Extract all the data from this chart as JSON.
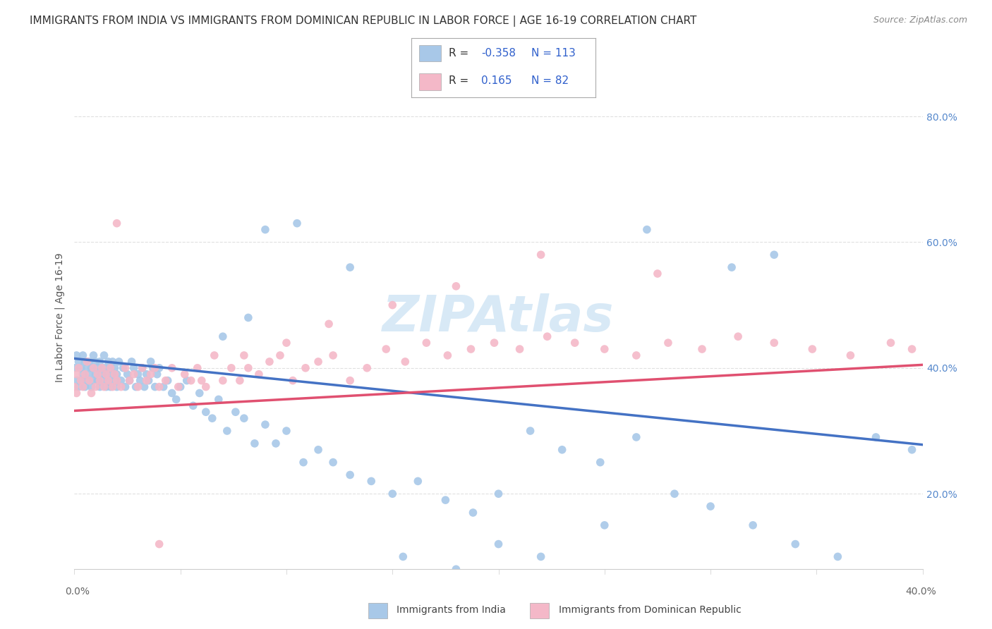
{
  "title": "IMMIGRANTS FROM INDIA VS IMMIGRANTS FROM DOMINICAN REPUBLIC IN LABOR FORCE | AGE 16-19 CORRELATION CHART",
  "source": "Source: ZipAtlas.com",
  "ylabel": "In Labor Force | Age 16-19",
  "xlim": [
    0.0,
    0.4
  ],
  "ylim": [
    0.08,
    0.88
  ],
  "watermark": "ZIPAtlas",
  "legend_R_india": "-0.358",
  "legend_N_india": "113",
  "legend_R_dr": "0.165",
  "legend_N_dr": "82",
  "india_color": "#a8c8e8",
  "dr_color": "#f4b8c8",
  "india_line_color": "#4472c4",
  "dr_line_color": "#e05070",
  "india_trend_x": [
    0.0,
    0.4
  ],
  "india_trend_y": [
    0.415,
    0.278
  ],
  "dr_trend_x": [
    0.0,
    0.4
  ],
  "dr_trend_y": [
    0.332,
    0.405
  ],
  "india_x": [
    0.0,
    0.001,
    0.001,
    0.002,
    0.002,
    0.003,
    0.003,
    0.004,
    0.004,
    0.005,
    0.005,
    0.006,
    0.006,
    0.007,
    0.007,
    0.008,
    0.008,
    0.009,
    0.009,
    0.01,
    0.01,
    0.011,
    0.011,
    0.012,
    0.012,
    0.013,
    0.013,
    0.014,
    0.014,
    0.015,
    0.015,
    0.016,
    0.016,
    0.017,
    0.017,
    0.018,
    0.018,
    0.019,
    0.019,
    0.02,
    0.02,
    0.021,
    0.022,
    0.023,
    0.024,
    0.025,
    0.026,
    0.027,
    0.028,
    0.029,
    0.03,
    0.031,
    0.032,
    0.033,
    0.034,
    0.035,
    0.036,
    0.037,
    0.038,
    0.039,
    0.04,
    0.042,
    0.044,
    0.046,
    0.048,
    0.05,
    0.053,
    0.056,
    0.059,
    0.062,
    0.065,
    0.068,
    0.072,
    0.076,
    0.08,
    0.085,
    0.09,
    0.095,
    0.1,
    0.108,
    0.115,
    0.122,
    0.13,
    0.14,
    0.15,
    0.162,
    0.175,
    0.188,
    0.2,
    0.215,
    0.23,
    0.248,
    0.265,
    0.283,
    0.3,
    0.32,
    0.34,
    0.36,
    0.378,
    0.395,
    0.27,
    0.31,
    0.33,
    0.25,
    0.22,
    0.2,
    0.18,
    0.155,
    0.13,
    0.105,
    0.09,
    0.082,
    0.07
  ],
  "india_y": [
    0.4,
    0.42,
    0.38,
    0.41,
    0.37,
    0.4,
    0.38,
    0.42,
    0.39,
    0.41,
    0.37,
    0.4,
    0.38,
    0.41,
    0.39,
    0.4,
    0.37,
    0.42,
    0.38,
    0.41,
    0.39,
    0.4,
    0.38,
    0.37,
    0.41,
    0.39,
    0.38,
    0.42,
    0.4,
    0.37,
    0.39,
    0.41,
    0.38,
    0.4,
    0.37,
    0.39,
    0.41,
    0.38,
    0.4,
    0.37,
    0.39,
    0.41,
    0.38,
    0.4,
    0.37,
    0.39,
    0.38,
    0.41,
    0.4,
    0.37,
    0.39,
    0.38,
    0.4,
    0.37,
    0.39,
    0.38,
    0.41,
    0.4,
    0.37,
    0.39,
    0.4,
    0.37,
    0.38,
    0.36,
    0.35,
    0.37,
    0.38,
    0.34,
    0.36,
    0.33,
    0.32,
    0.35,
    0.3,
    0.33,
    0.32,
    0.28,
    0.31,
    0.28,
    0.3,
    0.25,
    0.27,
    0.25,
    0.23,
    0.22,
    0.2,
    0.22,
    0.19,
    0.17,
    0.2,
    0.3,
    0.27,
    0.25,
    0.29,
    0.2,
    0.18,
    0.15,
    0.12,
    0.1,
    0.29,
    0.27,
    0.62,
    0.56,
    0.58,
    0.15,
    0.1,
    0.12,
    0.08,
    0.1,
    0.56,
    0.63,
    0.62,
    0.48,
    0.45
  ],
  "dr_x": [
    0.0,
    0.001,
    0.001,
    0.002,
    0.003,
    0.004,
    0.005,
    0.006,
    0.007,
    0.008,
    0.009,
    0.01,
    0.011,
    0.012,
    0.013,
    0.014,
    0.015,
    0.016,
    0.017,
    0.018,
    0.019,
    0.02,
    0.022,
    0.024,
    0.026,
    0.028,
    0.03,
    0.032,
    0.034,
    0.036,
    0.038,
    0.04,
    0.043,
    0.046,
    0.049,
    0.052,
    0.055,
    0.058,
    0.062,
    0.066,
    0.07,
    0.074,
    0.078,
    0.082,
    0.087,
    0.092,
    0.097,
    0.103,
    0.109,
    0.115,
    0.122,
    0.13,
    0.138,
    0.147,
    0.156,
    0.166,
    0.176,
    0.187,
    0.198,
    0.21,
    0.223,
    0.236,
    0.25,
    0.265,
    0.28,
    0.296,
    0.313,
    0.33,
    0.348,
    0.366,
    0.385,
    0.395,
    0.275,
    0.22,
    0.18,
    0.15,
    0.12,
    0.1,
    0.08,
    0.06,
    0.04,
    0.02
  ],
  "dr_y": [
    0.37,
    0.39,
    0.36,
    0.4,
    0.38,
    0.37,
    0.39,
    0.41,
    0.38,
    0.36,
    0.4,
    0.37,
    0.39,
    0.38,
    0.4,
    0.37,
    0.39,
    0.38,
    0.4,
    0.37,
    0.39,
    0.38,
    0.37,
    0.4,
    0.38,
    0.39,
    0.37,
    0.4,
    0.38,
    0.39,
    0.4,
    0.37,
    0.38,
    0.4,
    0.37,
    0.39,
    0.38,
    0.4,
    0.37,
    0.42,
    0.38,
    0.4,
    0.38,
    0.4,
    0.39,
    0.41,
    0.42,
    0.38,
    0.4,
    0.41,
    0.42,
    0.38,
    0.4,
    0.43,
    0.41,
    0.44,
    0.42,
    0.43,
    0.44,
    0.43,
    0.45,
    0.44,
    0.43,
    0.42,
    0.44,
    0.43,
    0.45,
    0.44,
    0.43,
    0.42,
    0.44,
    0.43,
    0.55,
    0.58,
    0.53,
    0.5,
    0.47,
    0.44,
    0.42,
    0.38,
    0.12,
    0.63
  ],
  "ytick_positions": [
    0.2,
    0.4,
    0.6,
    0.8
  ],
  "ytick_labels": [
    "20.0%",
    "40.0%",
    "60.0%",
    "80.0%"
  ],
  "xtick_left_label": "0.0%",
  "xtick_right_label": "40.0%",
  "background_color": "#ffffff",
  "grid_color": "#e0e0e0",
  "title_fontsize": 11,
  "source_fontsize": 9,
  "axis_label_fontsize": 10,
  "tick_fontsize": 10,
  "legend_value_color": "#3060cc",
  "legend_label_color": "#333333"
}
